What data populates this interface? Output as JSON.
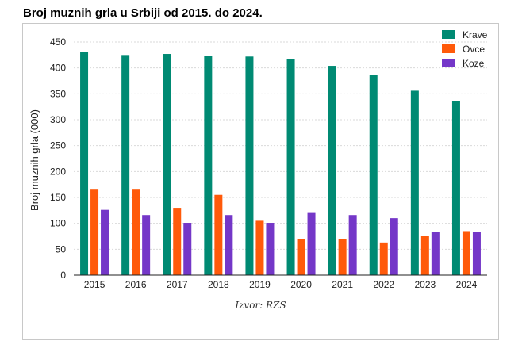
{
  "chart_data": {
    "type": "bar",
    "title": "Broj muznih grla u Srbiji od 2015. do 2024.",
    "ylabel": "Broj muznih grla (000)",
    "xlabel": "",
    "source": "Izvor: RZS",
    "categories": [
      "2015",
      "2016",
      "2017",
      "2018",
      "2019",
      "2020",
      "2021",
      "2022",
      "2023",
      "2024"
    ],
    "ylim": [
      0,
      450
    ],
    "yticks": [
      0,
      50,
      100,
      150,
      200,
      250,
      300,
      350,
      400,
      450
    ],
    "grid": true,
    "legend_position": "top-right",
    "series": [
      {
        "name": "Krave",
        "color": "#008a73",
        "values": [
          431,
          425,
          427,
          423,
          422,
          417,
          404,
          386,
          356,
          336
        ]
      },
      {
        "name": "Ovce",
        "color": "#ff5a0a",
        "values": [
          165,
          165,
          130,
          155,
          105,
          70,
          70,
          63,
          75,
          85
        ]
      },
      {
        "name": "Koze",
        "color": "#7437c8",
        "values": [
          126,
          116,
          101,
          116,
          101,
          120,
          116,
          110,
          83,
          84
        ]
      }
    ]
  }
}
